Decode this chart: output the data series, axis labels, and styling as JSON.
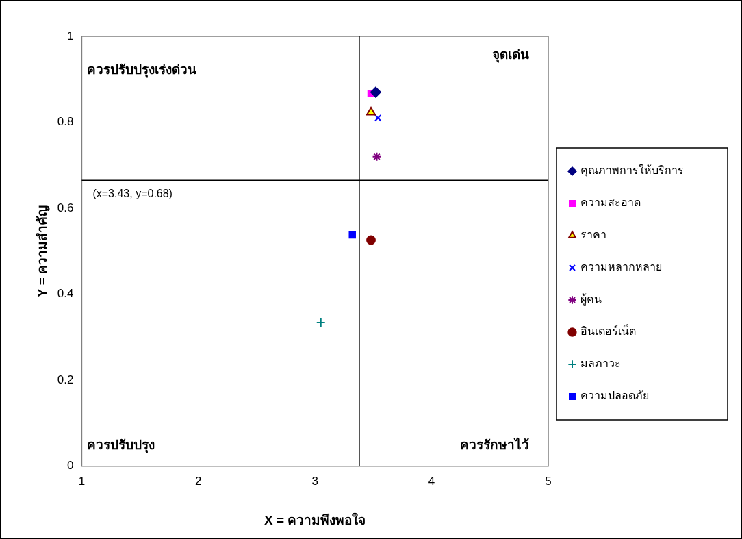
{
  "chart_data": {
    "type": "scatter",
    "xlabel": "X = ความพึงพอใจ",
    "ylabel": "Y = ความสำคัญ",
    "xlim": [
      1,
      5
    ],
    "xticks": [
      1,
      2,
      3,
      4,
      5
    ],
    "ylim": [
      0,
      1
    ],
    "yticks": [
      0,
      0.2,
      0.4,
      0.6,
      0.8,
      1
    ],
    "grid": false,
    "legend": "right",
    "series": [
      {
        "name": "คุณภาพการให้บริการ",
        "color": "#000080",
        "marker": "diamond",
        "x": [
          3.52
        ],
        "values": [
          0.87
        ]
      },
      {
        "name": "ความสะอาด",
        "color": "#ff00ff",
        "marker": "square",
        "x": [
          3.48
        ],
        "values": [
          0.867
        ]
      },
      {
        "name": "ราคา",
        "color": "#ffff00",
        "marker": "triangle",
        "x": [
          3.48
        ],
        "values": [
          0.823
        ]
      },
      {
        "name": "ความหลากหลาย",
        "color": "#0000ff",
        "marker": "x",
        "x": [
          3.54
        ],
        "values": [
          0.81
        ]
      },
      {
        "name": "ผู้คน",
        "color": "#800080",
        "x": [
          3.53
        ],
        "values": [
          0.72
        ]
      },
      {
        "name": "อินเตอร์เน็ต",
        "color": "#800000",
        "marker": "circle",
        "x": [
          3.48
        ],
        "values": [
          0.526
        ]
      },
      {
        "name": "มลภาวะ",
        "color": "#008080",
        "marker": "cross",
        "x": [
          3.05
        ],
        "values": [
          0.334
        ]
      },
      {
        "name": "ความปลอดภัย",
        "color": "#0000ff",
        "marker": "square",
        "x": [
          3.32
        ],
        "values": [
          0.538
        ]
      }
    ],
    "ref_lines": [
      {
        "axis": "x",
        "value": 3.38,
        "color": "#000000"
      },
      {
        "axis": "y",
        "value": 0.665,
        "color": "#000000"
      }
    ],
    "annotations": [
      "ควรปรับปรุงเร่งด่วน",
      "จุดเด่น",
      "ควรปรับปรุง",
      "ควรรักษาไว้",
      "(x=3.43, y=0.68)"
    ]
  }
}
